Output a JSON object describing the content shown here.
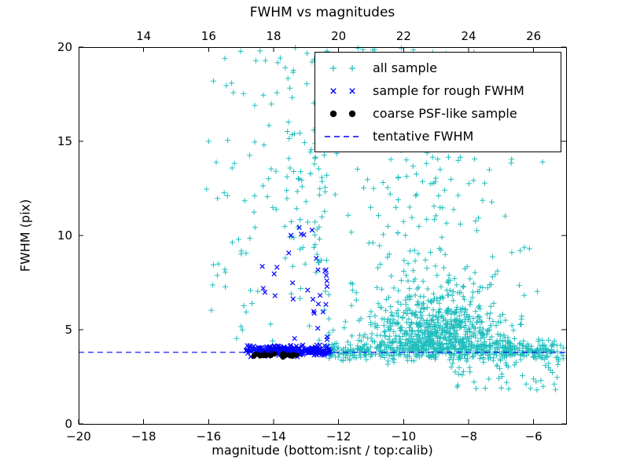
{
  "figure": {
    "background": "#ffffff"
  },
  "chart_data": {
    "type": "scatter",
    "title": "FWHM vs magnitudes",
    "xlabel": "magnitude (bottom:isnt / top:calib)",
    "ylabel": "FWHM (pix)",
    "grid": false,
    "legend_position": "upper right",
    "seed": 12345,
    "axes": {
      "x": {
        "min": -20,
        "max": -5,
        "ticks": [
          -20,
          -18,
          -16,
          -14,
          -12,
          -10,
          -8,
          -6
        ]
      },
      "y": {
        "min": 0,
        "max": 20,
        "ticks": [
          0,
          5,
          10,
          15,
          20
        ]
      },
      "x_top": {
        "ticks": [
          14,
          16,
          18,
          20,
          22,
          24,
          26
        ],
        "offset_from_bottom": 32
      }
    },
    "tentative_fwhm": 3.8,
    "series": [
      {
        "name": "all sample",
        "marker": "plus",
        "color": "#20bebe",
        "clusters": [
          {
            "n": 500,
            "x": {
              "dist": "uniform",
              "min": -12.32,
              "max": -5.08
            },
            "y": {
              "dist": "normal",
              "mean": 3.85,
              "sd": 0.27,
              "min": 2.9,
              "max": 5.0
            }
          },
          {
            "n": 640,
            "x": {
              "dist": "normal",
              "mean": -9.0,
              "sd": 1.15,
              "min": -12.3,
              "max": -5.1
            },
            "y": {
              "dist": "absnormal",
              "base": 3.95,
              "sd": 1.7,
              "max": 20
            }
          },
          {
            "n": 210,
            "x": {
              "dist": "normal",
              "mean": -9.3,
              "sd": 1.35,
              "min": -12.6,
              "max": -5.3
            },
            "y": {
              "dist": "uniform",
              "min": 6,
              "max": 20
            }
          },
          {
            "n": 95,
            "x": {
              "dist": "uniform",
              "min": -16.1,
              "max": -12.35
            },
            "y": {
              "dist": "uniform",
              "min": 4.2,
              "max": 20
            }
          },
          {
            "n": 55,
            "x": {
              "dist": "uniform",
              "min": -13.7,
              "max": -12.35
            },
            "y": {
              "dist": "uniform",
              "min": 8,
              "max": 20
            }
          },
          {
            "n": 45,
            "x": {
              "dist": "uniform",
              "min": -8.6,
              "max": -5.2
            },
            "y": {
              "dist": "uniform",
              "min": 1.7,
              "max": 3.3
            }
          }
        ],
        "points": [
          [
            -16.0,
            15.0
          ],
          [
            -15.5,
            19.4
          ],
          [
            -15.5,
            8.2
          ]
        ]
      },
      {
        "name": "sample for rough FWHM",
        "marker": "x",
        "color": "#0000ff",
        "clusters": [
          {
            "n": 240,
            "x": {
              "dist": "uniform",
              "min": -14.85,
              "max": -12.25
            },
            "y": {
              "dist": "normal",
              "mean": 3.9,
              "sd": 0.13,
              "min": 3.55,
              "max": 4.35
            }
          },
          {
            "n": 26,
            "x": {
              "dist": "uniform",
              "min": -14.35,
              "max": -12.35
            },
            "y": {
              "dist": "uniform",
              "min": 4.4,
              "max": 8.6
            }
          },
          {
            "n": 7,
            "x": {
              "dist": "uniform",
              "min": -13.6,
              "max": -12.5
            },
            "y": {
              "dist": "uniform",
              "min": 8.6,
              "max": 10.6
            }
          }
        ],
        "points": []
      },
      {
        "name": "coarse PSF-like sample",
        "marker": "dot",
        "color": "#000000",
        "clusters": [
          {
            "n": 26,
            "x": {
              "dist": "uniform",
              "min": -14.62,
              "max": -13.28
            },
            "y": {
              "dist": "normal",
              "mean": 3.66,
              "sd": 0.055,
              "min": 3.5,
              "max": 3.82
            }
          }
        ],
        "points": []
      },
      {
        "name": "tentative FWHM",
        "marker": "dashed",
        "color": "#0000ff",
        "line_y": 3.8
      }
    ]
  }
}
